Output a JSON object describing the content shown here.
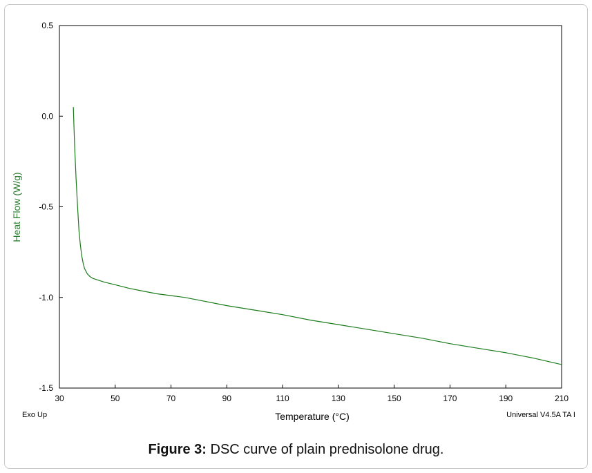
{
  "chart_data": {
    "type": "line",
    "xlabel": "Temperature (°C)",
    "ylabel": "Heat Flow (W/g)",
    "xlim": [
      30,
      210
    ],
    "ylim": [
      -1.5,
      0.5
    ],
    "xticks": [
      "30",
      "50",
      "70",
      "90",
      "110",
      "130",
      "150",
      "170",
      "190",
      "210"
    ],
    "yticks": [
      "0.5",
      "0.0",
      "-0.5",
      "-1.0",
      "-1.5"
    ],
    "grid": false,
    "line_color": "#1a7a1a",
    "series": [
      {
        "x": [
          35.0,
          35.2,
          35.5,
          36.0,
          36.5,
          37.0,
          37.5,
          38.0,
          38.5,
          39.0,
          40.0,
          41.0,
          42.0,
          44.0,
          46.0,
          50.0,
          55.0,
          60.0,
          65.0,
          70.0,
          75.0,
          80.0,
          90.0,
          100.0,
          110.0,
          120.0,
          130.0,
          140.0,
          150.0,
          160.0,
          170.0,
          180.0,
          190.0,
          200.0,
          210.0
        ],
        "y": [
          0.05,
          -0.05,
          -0.18,
          -0.35,
          -0.5,
          -0.63,
          -0.71,
          -0.77,
          -0.81,
          -0.84,
          -0.87,
          -0.885,
          -0.895,
          -0.905,
          -0.915,
          -0.93,
          -0.95,
          -0.965,
          -0.98,
          -0.99,
          -1.0,
          -1.015,
          -1.045,
          -1.07,
          -1.095,
          -1.125,
          -1.15,
          -1.175,
          -1.2,
          -1.225,
          -1.255,
          -1.28,
          -1.305,
          -1.335,
          -1.37
        ]
      }
    ],
    "annotations": [
      "Exo Up",
      "Universal V4.5A TA I"
    ]
  },
  "caption": {
    "prefix": "Figure 3:",
    "text": " DSC curve of plain prednisolone drug."
  }
}
